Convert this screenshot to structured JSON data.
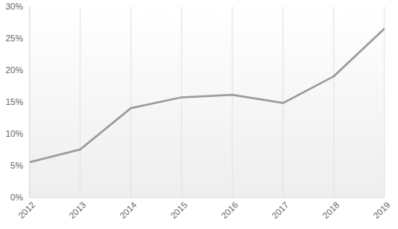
{
  "chart_data": {
    "type": "line",
    "categories": [
      "2012",
      "2013",
      "2014",
      "2015",
      "2016",
      "2017",
      "2018",
      "2019"
    ],
    "values": [
      5.5,
      7.5,
      14,
      15.7,
      16.1,
      14.8,
      19,
      26.5
    ],
    "color": "#9a9a9a",
    "ylim": [
      0,
      30
    ],
    "yticks": [
      {
        "value": 0,
        "label": "0%"
      },
      {
        "value": 5,
        "label": "5%"
      },
      {
        "value": 10,
        "label": "10%"
      },
      {
        "value": 15,
        "label": "15%"
      },
      {
        "value": 20,
        "label": "20%"
      },
      {
        "value": 25,
        "label": "25%"
      },
      {
        "value": 30,
        "label": "30%"
      }
    ],
    "grid": true
  }
}
